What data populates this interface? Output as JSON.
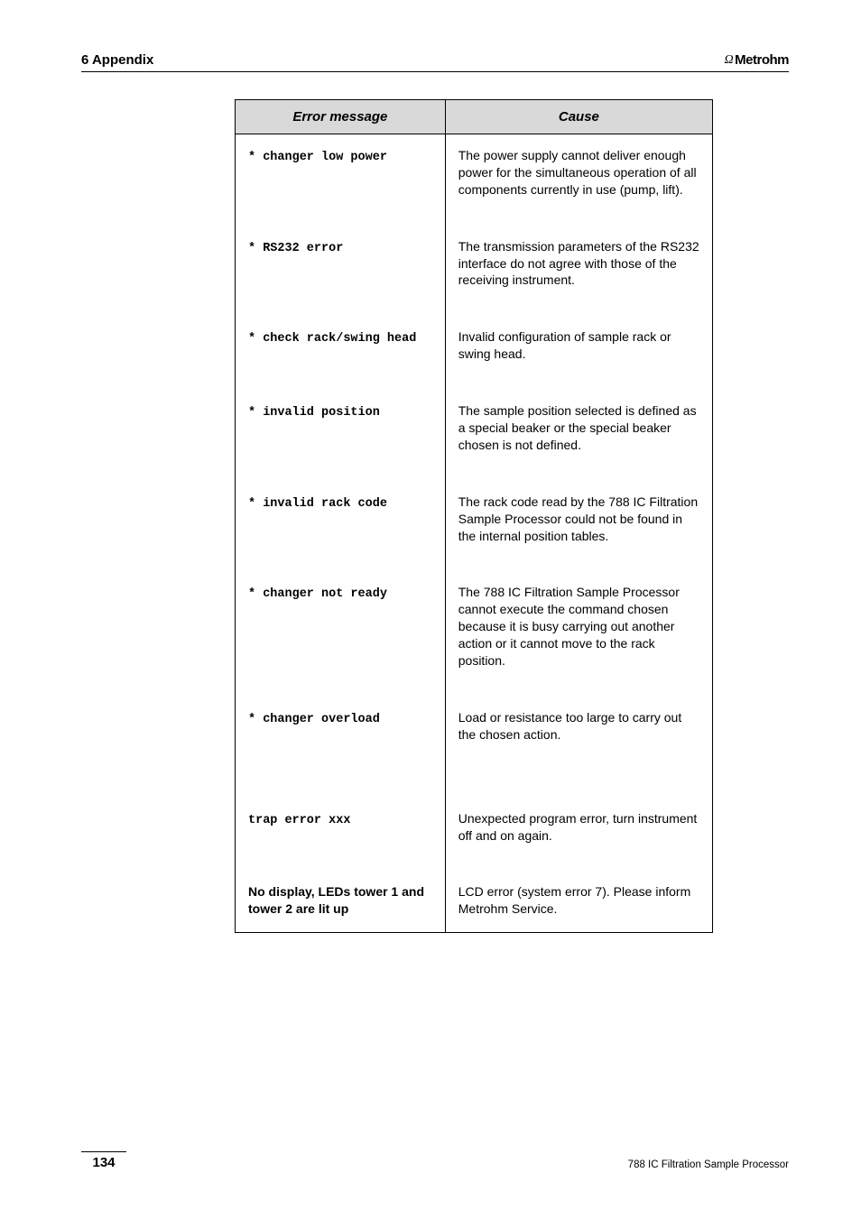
{
  "header": {
    "section": "6 Appendix",
    "brand": "Metrohm",
    "brand_prefix": "Ω"
  },
  "table": {
    "columns": [
      "Error message",
      "Cause"
    ],
    "rows": [
      {
        "err": "* changer low power",
        "err_style": "mono",
        "cause": "The power supply cannot deliver enough power for the simultaneous operation of all components currently in use (pump, lift).",
        "extra_gap": false
      },
      {
        "err": "* RS232 error",
        "err_style": "mono",
        "cause": "The transmission parameters of the RS232 interface do not agree with those of the receiving instrument.",
        "extra_gap": false
      },
      {
        "err": "* check rack/swing head",
        "err_style": "mono",
        "cause": "Invalid configuration of sample rack or swing head.",
        "extra_gap": false
      },
      {
        "err": "* invalid position",
        "err_style": "mono",
        "cause": "The sample position selected is defined as a special beaker or the special beaker chosen is not defined.",
        "extra_gap": false
      },
      {
        "err": "* invalid rack code",
        "err_style": "mono",
        "cause": "The rack code read by the 788 IC Filtration Sample Processor could not be found in the internal position tables.",
        "extra_gap": false
      },
      {
        "err": "* changer not ready",
        "err_style": "mono",
        "cause": "The 788 IC Filtration Sample Processor cannot execute the command chosen because it is busy carrying out another action or it cannot move to the rack position.",
        "extra_gap": false
      },
      {
        "err": "* changer overload",
        "err_style": "mono",
        "cause": "Load or resistance too large to carry out the chosen action.",
        "extra_gap": false
      },
      {
        "err": "trap error xxx",
        "err_style": "mono",
        "cause": "Unexpected program error, turn instrument off and on again.",
        "extra_gap": true
      },
      {
        "err": "No display, LEDs tower 1 and tower 2 are lit up",
        "err_style": "bold-sans",
        "cause": "LCD error (system error 7). Please inform Metrohm Service.",
        "extra_gap": false
      }
    ]
  },
  "footer": {
    "page": "134",
    "doc": "788 IC Filtration Sample Processor"
  }
}
